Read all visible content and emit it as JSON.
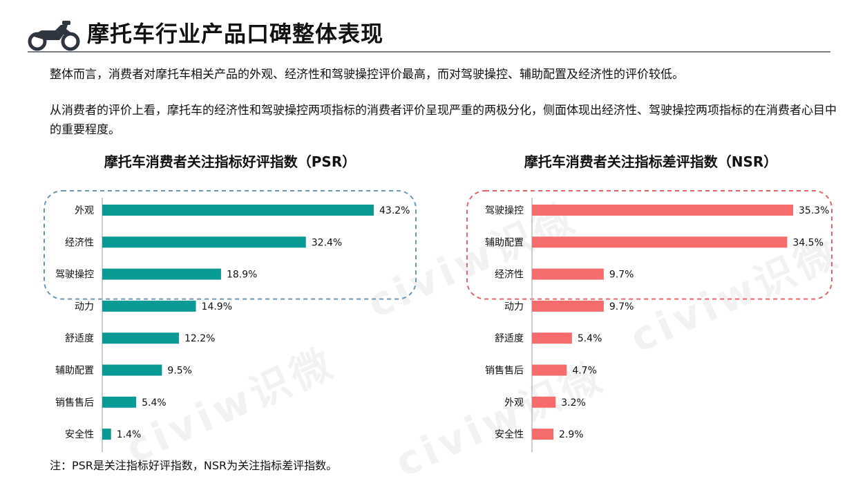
{
  "header": {
    "title": "摩托车行业产品口碑整体表现",
    "icon": "motorcycle-icon"
  },
  "intro": {
    "p1": "整体而言，消费者对摩托车相关产品的外观、经济性和驾驶操控评价最高，而对驾驶操控、辅助配置及经济性的评价较低。",
    "p2": "从消费者的评价上看，摩托车的经济性和驾驶操控两项指标的消费者评价呈现严重的两极分化，侧面体现出经济性、驾驶操控两项指标的在消费者心目中的重要程度。"
  },
  "footnote": "注：PSR是关注指标好评指数，NSR为关注指标差评指数。",
  "watermark": "civiw识微",
  "colors": {
    "psr_bar": "#0a9a96",
    "nsr_bar": "#f66b6b",
    "psr_highlight": "#6a98b8",
    "nsr_highlight": "#e86464",
    "axis": "#bdbdbd"
  },
  "chart_data": [
    {
      "type": "bar",
      "orientation": "horizontal",
      "title": "摩托车消费者关注指标好评指数（PSR）",
      "categories": [
        "外观",
        "经济性",
        "驾驶操控",
        "动力",
        "舒适度",
        "辅助配置",
        "销售售后",
        "安全性"
      ],
      "values": [
        43.2,
        32.4,
        18.9,
        14.9,
        12.2,
        9.5,
        5.4,
        1.4
      ],
      "value_labels": [
        "43.2%",
        "32.4%",
        "18.9%",
        "14.9%",
        "12.2%",
        "9.5%",
        "5.4%",
        "1.4%"
      ],
      "highlighted_top": 3,
      "xlim": [
        0,
        43.2
      ]
    },
    {
      "type": "bar",
      "orientation": "horizontal",
      "title": "摩托车消费者关注指标差评指数（NSR）",
      "categories": [
        "驾驶操控",
        "辅助配置",
        "经济性",
        "动力",
        "舒适度",
        "销售售后",
        "外观",
        "安全性"
      ],
      "values": [
        35.3,
        34.5,
        9.7,
        9.7,
        5.4,
        4.7,
        3.2,
        2.9
      ],
      "value_labels": [
        "35.3%",
        "34.5%",
        "9.7%",
        "9.7%",
        "5.4%",
        "4.7%",
        "3.2%",
        "2.9%"
      ],
      "highlighted_top": 3,
      "xlim": [
        0,
        35.3
      ]
    }
  ]
}
